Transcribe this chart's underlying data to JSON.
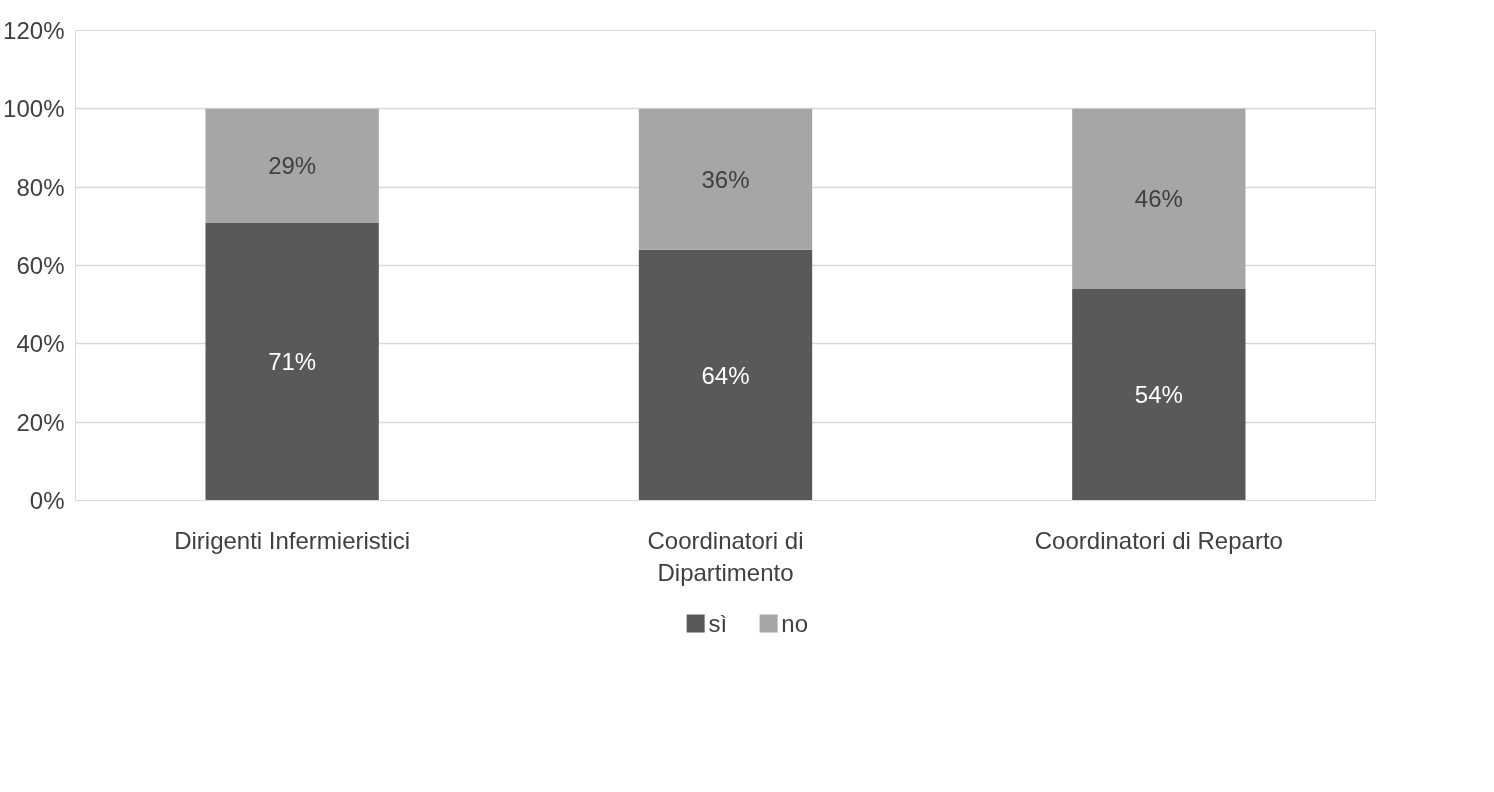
{
  "chart_data": {
    "type": "bar",
    "stacked": true,
    "categories": [
      "Dirigenti Infermieristici",
      "Coordinatori di Dipartimento",
      "Coordinatori di Reparto"
    ],
    "series": [
      {
        "name": "sì",
        "color": "#595959",
        "values": [
          71,
          64,
          54
        ],
        "value_labels": [
          "71%",
          "64%",
          "54%"
        ]
      },
      {
        "name": "no",
        "color": "#a6a6a6",
        "values": [
          29,
          36,
          46
        ],
        "value_labels": [
          "29%",
          "36%",
          "46%"
        ]
      }
    ],
    "ylim": [
      0,
      120
    ],
    "yticks": [
      {
        "value": 0,
        "label": "0%"
      },
      {
        "value": 20,
        "label": "20%"
      },
      {
        "value": 40,
        "label": "40%"
      },
      {
        "value": 60,
        "label": "60%"
      },
      {
        "value": 80,
        "label": "80%"
      },
      {
        "value": 100,
        "label": "100%"
      },
      {
        "value": 120,
        "label": "120%"
      }
    ],
    "grid": "y",
    "legend": "bottom"
  }
}
